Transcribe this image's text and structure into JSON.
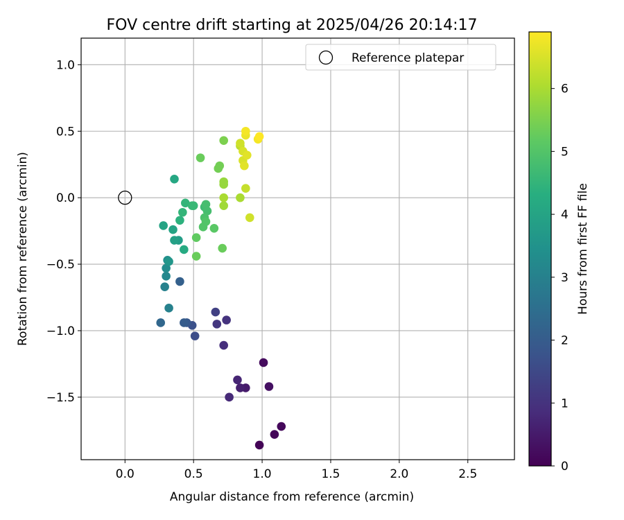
{
  "chart_data": {
    "type": "scatter",
    "title": "FOV centre drift starting at 2025/04/26 20:14:17",
    "xlabel": "Angular distance from reference (arcmin)",
    "ylabel": "Rotation from reference (arcmin)",
    "xlim": [
      -0.32,
      2.84
    ],
    "ylim": [
      -1.97,
      1.2
    ],
    "xticks": [
      0.0,
      0.5,
      1.0,
      1.5,
      2.0,
      2.5
    ],
    "xtick_labels": [
      "0.0",
      "0.5",
      "1.0",
      "1.5",
      "2.0",
      "2.5"
    ],
    "yticks": [
      1.0,
      0.5,
      0.0,
      -0.5,
      -1.0,
      -1.5
    ],
    "ytick_labels": [
      "1.0",
      "0.5",
      "0.0",
      "−0.5",
      "−1.0",
      "−1.5"
    ],
    "grid": true,
    "colormap": "viridis",
    "colorbar": {
      "label": "Hours from first FF file",
      "range": [
        0,
        6.9
      ],
      "ticks": [
        0,
        1,
        2,
        3,
        4,
        5,
        6
      ],
      "tick_labels": [
        "0",
        "1",
        "2",
        "3",
        "4",
        "5",
        "6"
      ]
    },
    "legend": {
      "position": "top-right",
      "entries": [
        {
          "name": "Reference platepar",
          "marker": "open-circle"
        }
      ]
    },
    "reference_point": {
      "x": 0.0,
      "y": 0.0
    },
    "points": [
      {
        "x": 0.98,
        "y": -1.86,
        "hours": 0.05
      },
      {
        "x": 1.09,
        "y": -1.78,
        "hours": 0.1
      },
      {
        "x": 1.14,
        "y": -1.72,
        "hours": 0.15
      },
      {
        "x": 1.01,
        "y": -1.24,
        "hours": 0.2
      },
      {
        "x": 1.05,
        "y": -1.42,
        "hours": 0.3
      },
      {
        "x": 0.88,
        "y": -1.43,
        "hours": 0.5
      },
      {
        "x": 0.84,
        "y": -1.43,
        "hours": 0.6
      },
      {
        "x": 0.82,
        "y": -1.37,
        "hours": 0.7
      },
      {
        "x": 0.76,
        "y": -1.5,
        "hours": 0.8
      },
      {
        "x": 0.72,
        "y": -1.11,
        "hours": 0.9
      },
      {
        "x": 0.74,
        "y": -0.92,
        "hours": 1.0
      },
      {
        "x": 0.67,
        "y": -0.95,
        "hours": 1.1
      },
      {
        "x": 0.66,
        "y": -0.86,
        "hours": 1.3
      },
      {
        "x": 0.51,
        "y": -1.04,
        "hours": 1.6
      },
      {
        "x": 0.49,
        "y": -0.96,
        "hours": 1.7
      },
      {
        "x": 0.45,
        "y": -0.94,
        "hours": 1.9
      },
      {
        "x": 0.43,
        "y": -0.94,
        "hours": 2.0
      },
      {
        "x": 0.4,
        "y": -0.63,
        "hours": 2.1
      },
      {
        "x": 0.26,
        "y": -0.94,
        "hours": 2.3
      },
      {
        "x": 0.32,
        "y": -0.83,
        "hours": 3.0
      },
      {
        "x": 0.29,
        "y": -0.67,
        "hours": 3.0
      },
      {
        "x": 0.3,
        "y": -0.59,
        "hours": 3.2
      },
      {
        "x": 0.3,
        "y": -0.53,
        "hours": 3.3
      },
      {
        "x": 0.31,
        "y": -0.47,
        "hours": 3.4
      },
      {
        "x": 0.32,
        "y": -0.48,
        "hours": 3.6
      },
      {
        "x": 0.28,
        "y": -0.21,
        "hours": 4.0
      },
      {
        "x": 0.39,
        "y": -0.32,
        "hours": 3.8
      },
      {
        "x": 0.36,
        "y": -0.32,
        "hours": 3.9
      },
      {
        "x": 0.35,
        "y": -0.24,
        "hours": 4.0
      },
      {
        "x": 0.36,
        "y": 0.14,
        "hours": 4.1
      },
      {
        "x": 0.43,
        "y": -0.39,
        "hours": 4.2
      },
      {
        "x": 0.4,
        "y": -0.17,
        "hours": 4.4
      },
      {
        "x": 0.42,
        "y": -0.11,
        "hours": 4.5
      },
      {
        "x": 0.44,
        "y": -0.04,
        "hours": 4.5
      },
      {
        "x": 0.5,
        "y": -0.06,
        "hours": 4.6
      },
      {
        "x": 0.49,
        "y": -0.06,
        "hours": 4.6
      },
      {
        "x": 0.58,
        "y": -0.07,
        "hours": 4.7
      },
      {
        "x": 0.59,
        "y": -0.05,
        "hours": 4.8
      },
      {
        "x": 0.6,
        "y": -0.1,
        "hours": 4.8
      },
      {
        "x": 0.58,
        "y": -0.15,
        "hours": 4.9
      },
      {
        "x": 0.59,
        "y": -0.18,
        "hours": 5.0
      },
      {
        "x": 0.57,
        "y": -0.22,
        "hours": 5.0
      },
      {
        "x": 0.65,
        "y": -0.23,
        "hours": 5.1
      },
      {
        "x": 0.52,
        "y": -0.3,
        "hours": 5.2
      },
      {
        "x": 0.52,
        "y": -0.44,
        "hours": 5.3
      },
      {
        "x": 0.71,
        "y": -0.38,
        "hours": 5.3
      },
      {
        "x": 0.55,
        "y": 0.3,
        "hours": 5.3
      },
      {
        "x": 0.68,
        "y": 0.22,
        "hours": 5.4
      },
      {
        "x": 0.69,
        "y": 0.24,
        "hours": 5.4
      },
      {
        "x": 0.72,
        "y": 0.43,
        "hours": 5.5
      },
      {
        "x": 0.72,
        "y": 0.12,
        "hours": 5.8
      },
      {
        "x": 0.72,
        "y": 0.1,
        "hours": 5.8
      },
      {
        "x": 0.72,
        "y": -0.06,
        "hours": 5.9
      },
      {
        "x": 0.72,
        "y": 0.0,
        "hours": 6.0
      },
      {
        "x": 0.84,
        "y": 0.0,
        "hours": 6.0
      },
      {
        "x": 0.88,
        "y": 0.07,
        "hours": 6.3
      },
      {
        "x": 0.91,
        "y": -0.15,
        "hours": 6.4
      },
      {
        "x": 0.84,
        "y": 0.39,
        "hours": 6.2
      },
      {
        "x": 0.84,
        "y": 0.41,
        "hours": 6.4
      },
      {
        "x": 0.86,
        "y": 0.35,
        "hours": 6.5
      },
      {
        "x": 0.86,
        "y": 0.28,
        "hours": 6.5
      },
      {
        "x": 0.87,
        "y": 0.24,
        "hours": 6.6
      },
      {
        "x": 0.89,
        "y": 0.32,
        "hours": 6.6
      },
      {
        "x": 0.88,
        "y": 0.47,
        "hours": 6.7
      },
      {
        "x": 0.88,
        "y": 0.5,
        "hours": 6.8
      },
      {
        "x": 0.97,
        "y": 0.44,
        "hours": 6.8
      },
      {
        "x": 0.98,
        "y": 0.46,
        "hours": 6.9
      }
    ]
  }
}
